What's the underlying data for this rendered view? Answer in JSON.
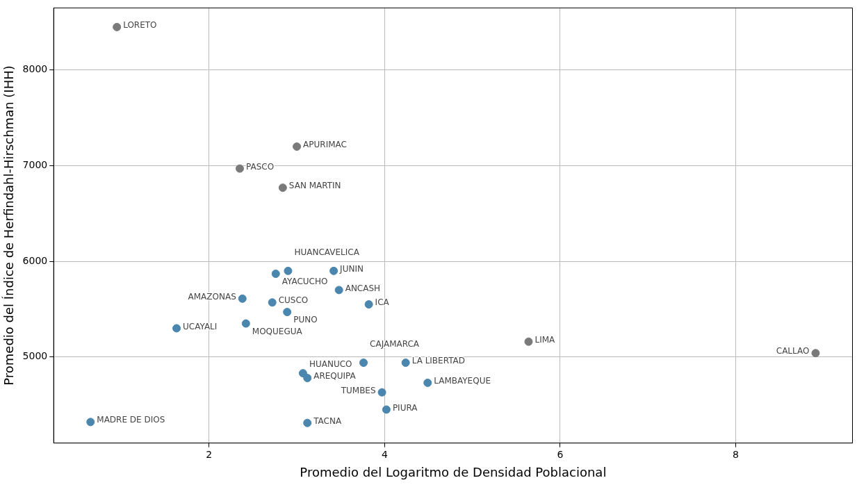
{
  "chart_data": {
    "type": "scatter",
    "xlabel": "Promedio del Logaritmo de Densidad Poblacional",
    "ylabel": "Promedio del Índice de Herfindahl-Hirschman (IHH)",
    "x": [
      0.95,
      3.0,
      2.35,
      2.84,
      2.76,
      2.9,
      3.42,
      3.48,
      2.38,
      2.72,
      2.89,
      2.42,
      3.82,
      1.63,
      5.64,
      8.91,
      3.76,
      4.24,
      4.49,
      3.07,
      3.12,
      3.97,
      4.02,
      3.12,
      0.65
    ],
    "values": [
      8450,
      7200,
      6970,
      6770,
      5870,
      5900,
      5900,
      5700,
      5610,
      5570,
      5470,
      5350,
      5550,
      5300,
      5160,
      5040,
      4940,
      4940,
      4730,
      4830,
      4780,
      4630,
      4450,
      4310,
      4320
    ],
    "colors": [
      "#7a7a7a",
      "#7a7a7a",
      "#7a7a7a",
      "#7a7a7a",
      "#4a86ad",
      "#4a86ad",
      "#4a86ad",
      "#4a86ad",
      "#4a86ad",
      "#4a86ad",
      "#4a86ad",
      "#4a86ad",
      "#4a86ad",
      "#4a86ad",
      "#7a7a7a",
      "#7a7a7a",
      "#4a86ad",
      "#4a86ad",
      "#4a86ad",
      "#4a86ad",
      "#4a86ad",
      "#4a86ad",
      "#4a86ad",
      "#4a86ad",
      "#4a86ad"
    ],
    "annotations": [
      {
        "text": "LORETO",
        "x": 0.95,
        "y": 8450
      },
      {
        "text": "APURIMAC",
        "x": 3.0,
        "y": 7200
      },
      {
        "text": "PASCO",
        "x": 2.35,
        "y": 6970
      },
      {
        "text": "SAN MARTIN",
        "x": 2.84,
        "y": 6770
      },
      {
        "text": "AYACUCHO",
        "x": 2.76,
        "y": 5870
      },
      {
        "text": "HUANCAVELICA",
        "x": 2.9,
        "y": 5900
      },
      {
        "text": "JUNIN",
        "x": 3.42,
        "y": 5900
      },
      {
        "text": "ANCASH",
        "x": 3.48,
        "y": 5700
      },
      {
        "text": "AMAZONAS",
        "x": 2.38,
        "y": 5610
      },
      {
        "text": "CUSCO",
        "x": 2.72,
        "y": 5570
      },
      {
        "text": "PUNO",
        "x": 2.89,
        "y": 5470
      },
      {
        "text": "MOQUEGUA",
        "x": 2.42,
        "y": 5350
      },
      {
        "text": "ICA",
        "x": 3.82,
        "y": 5550
      },
      {
        "text": "UCAYALI",
        "x": 1.63,
        "y": 5300
      },
      {
        "text": "LIMA",
        "x": 5.64,
        "y": 5160
      },
      {
        "text": "CALLAO",
        "x": 8.91,
        "y": 5040
      },
      {
        "text": "CAJAMARCA",
        "x": 3.76,
        "y": 4940
      },
      {
        "text": "LA LIBERTAD",
        "x": 4.24,
        "y": 4940
      },
      {
        "text": "LAMBAYEQUE",
        "x": 4.49,
        "y": 4730
      },
      {
        "text": "HUANUCO",
        "x": 3.07,
        "y": 4830
      },
      {
        "text": "AREQUIPA",
        "x": 3.12,
        "y": 4780
      },
      {
        "text": "TUMBES",
        "x": 3.97,
        "y": 4630
      },
      {
        "text": "PIURA",
        "x": 4.02,
        "y": 4450
      },
      {
        "text": "TACNA",
        "x": 3.12,
        "y": 4310
      },
      {
        "text": "MADRE DE DIOS",
        "x": 0.65,
        "y": 4320
      }
    ],
    "xlim": [
      0.23,
      9.33
    ],
    "ylim": [
      4100,
      8650
    ],
    "xticks": [
      2,
      4,
      6,
      8
    ],
    "yticks": [
      5000,
      6000,
      7000,
      8000
    ],
    "grid": true,
    "legend": false,
    "marker": "circle"
  }
}
